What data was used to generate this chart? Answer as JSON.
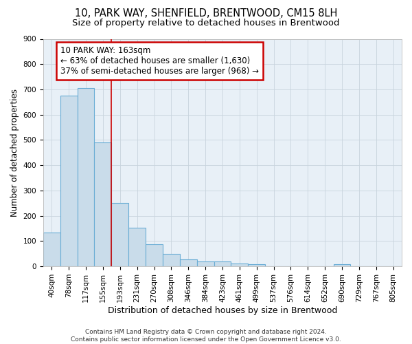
{
  "title1": "10, PARK WAY, SHENFIELD, BRENTWOOD, CM15 8LH",
  "title2": "Size of property relative to detached houses in Brentwood",
  "xlabel": "Distribution of detached houses by size in Brentwood",
  "ylabel": "Number of detached properties",
  "bar_labels": [
    "40sqm",
    "78sqm",
    "117sqm",
    "155sqm",
    "193sqm",
    "231sqm",
    "270sqm",
    "308sqm",
    "346sqm",
    "384sqm",
    "423sqm",
    "461sqm",
    "499sqm",
    "537sqm",
    "576sqm",
    "614sqm",
    "652sqm",
    "690sqm",
    "729sqm",
    "767sqm",
    "805sqm"
  ],
  "bar_values": [
    135,
    675,
    705,
    490,
    252,
    152,
    87,
    50,
    28,
    20,
    20,
    10,
    8,
    0,
    0,
    0,
    0,
    9,
    0,
    0,
    0
  ],
  "bar_color": "#c9dcea",
  "bar_edge_color": "#6aadd5",
  "vline_x": 3.5,
  "vline_color": "#cc0000",
  "annotation_text": "10 PARK WAY: 163sqm\n← 63% of detached houses are smaller (1,630)\n37% of semi-detached houses are larger (968) →",
  "annotation_box_color": "white",
  "annotation_box_edge_color": "#cc0000",
  "ylim": [
    0,
    900
  ],
  "yticks": [
    0,
    100,
    200,
    300,
    400,
    500,
    600,
    700,
    800,
    900
  ],
  "grid_color": "#c8d4dd",
  "bg_color": "#e8f0f7",
  "footer": "Contains HM Land Registry data © Crown copyright and database right 2024.\nContains public sector information licensed under the Open Government Licence v3.0.",
  "title1_fontsize": 10.5,
  "title2_fontsize": 9.5,
  "xlabel_fontsize": 9,
  "ylabel_fontsize": 8.5,
  "tick_fontsize": 7.5,
  "annotation_fontsize": 8.5,
  "footer_fontsize": 6.5
}
